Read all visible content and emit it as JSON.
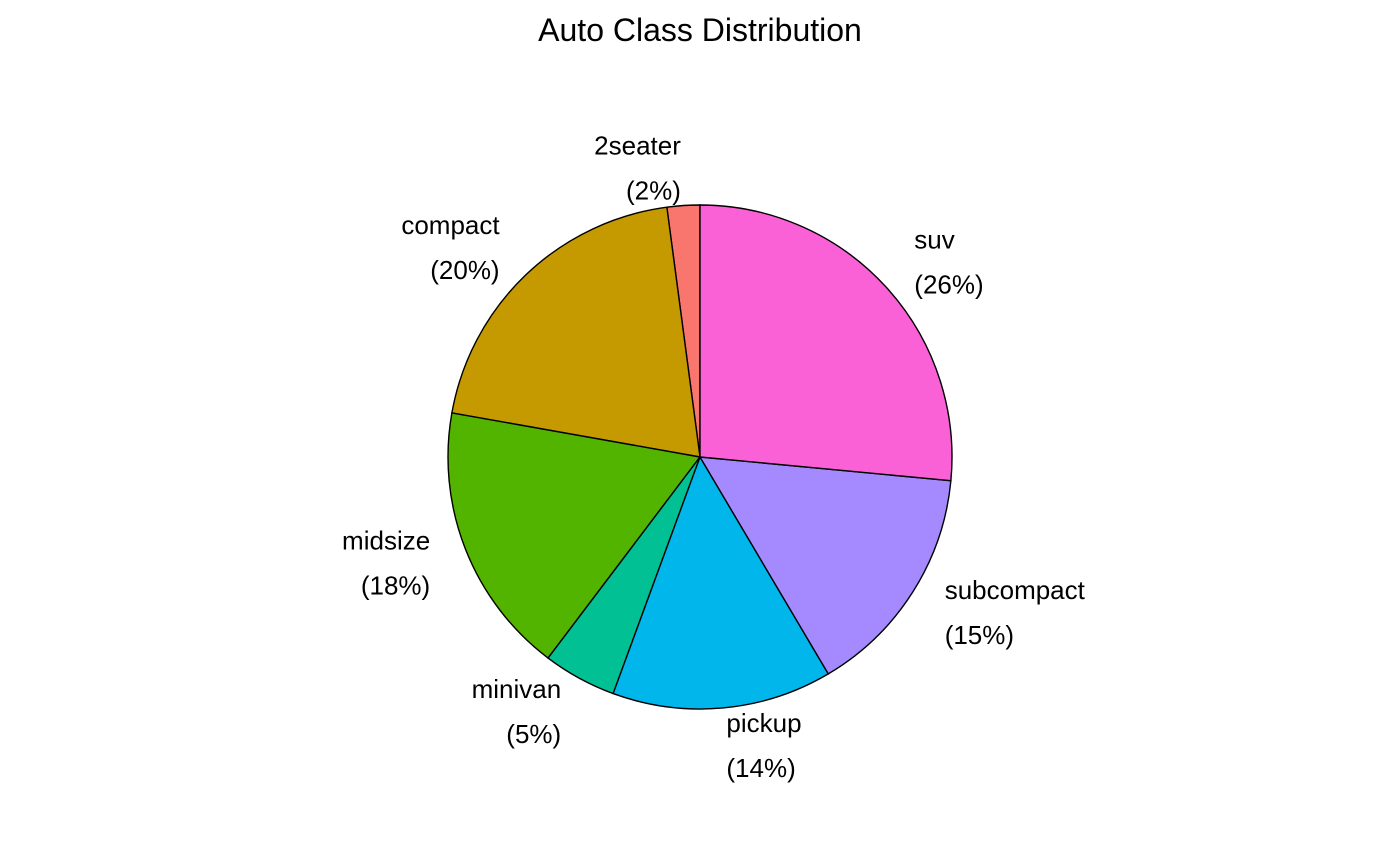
{
  "chart_data": {
    "type": "pie",
    "title": "Auto Class Distribution",
    "direction": "clockwise",
    "start_angle": "12 o'clock",
    "legend": "none",
    "slices": [
      {
        "category": "2seater",
        "percent_label": "(2%)",
        "value": 2.1,
        "color": "#F8766D"
      },
      {
        "category": "compact",
        "percent_label": "(20%)",
        "value": 20.1,
        "color": "#C49A00"
      },
      {
        "category": "midsize",
        "percent_label": "(18%)",
        "value": 17.5,
        "color": "#53B400"
      },
      {
        "category": "minivan",
        "percent_label": "(5%)",
        "value": 4.7,
        "color": "#00C094"
      },
      {
        "category": "pickup",
        "percent_label": "(14%)",
        "value": 14.1,
        "color": "#00B6EB"
      },
      {
        "category": "subcompact",
        "percent_label": "(15%)",
        "value": 15.0,
        "color": "#A58AFF"
      },
      {
        "category": "suv",
        "percent_label": "(26%)",
        "value": 26.5,
        "color": "#FB61D7"
      }
    ]
  }
}
